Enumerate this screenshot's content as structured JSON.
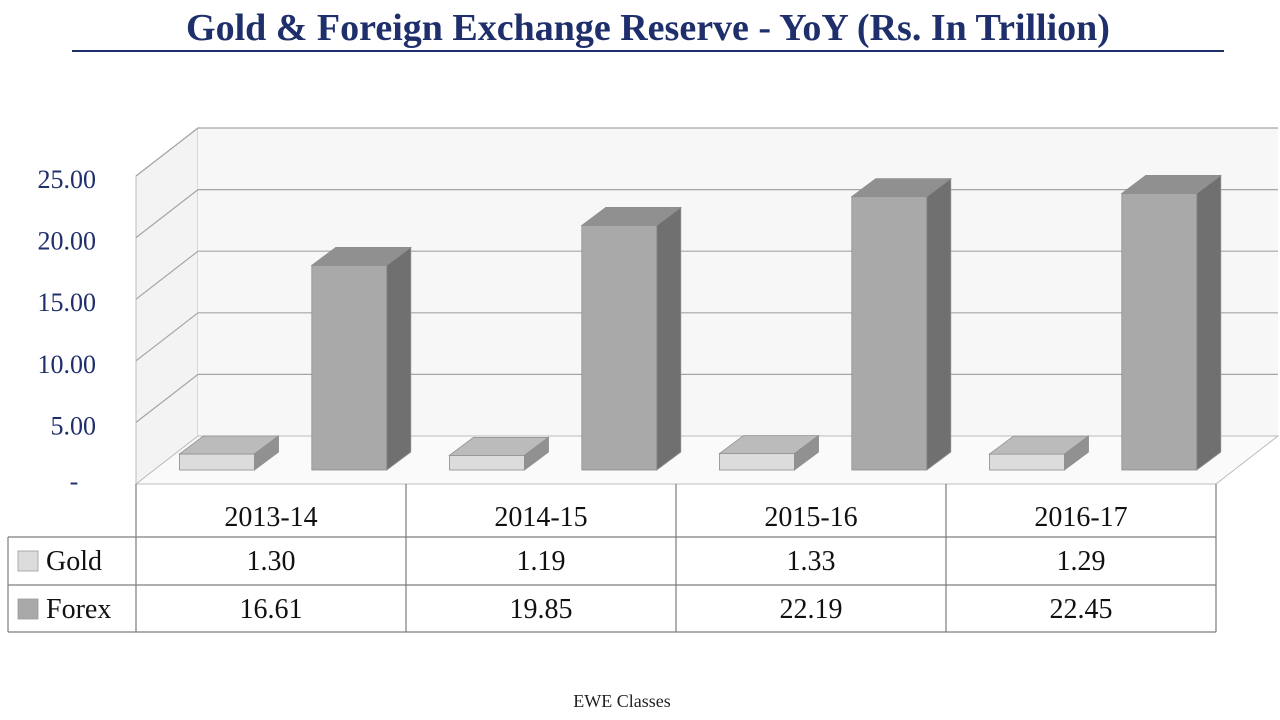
{
  "chart_data": {
    "type": "bar",
    "title": "Gold & Foreign Exchange Reserve - YoY (Rs. In Trillion)",
    "categories": [
      "2013-14",
      "2014-15",
      "2015-16",
      "2016-17"
    ],
    "series": [
      {
        "name": "Gold",
        "values": [
          1.3,
          1.19,
          1.33,
          1.29
        ],
        "labels": [
          "1.30",
          "1.19",
          "1.33",
          "1.29"
        ],
        "color": "#dcdcdc"
      },
      {
        "name": "Forex",
        "values": [
          16.61,
          19.85,
          22.19,
          22.45
        ],
        "labels": [
          "16.61",
          "19.85",
          "22.19",
          "22.45"
        ],
        "color": "#a9a9a9"
      }
    ],
    "yticks": [
      {
        "value": 0,
        "label": "-"
      },
      {
        "value": 5,
        "label": "5.00"
      },
      {
        "value": 10,
        "label": "10.00"
      },
      {
        "value": 15,
        "label": "15.00"
      },
      {
        "value": 20,
        "label": "20.00"
      },
      {
        "value": 25,
        "label": "25.00"
      }
    ],
    "ylim": [
      0,
      25
    ],
    "grid": true,
    "data_table": true,
    "three_d": true,
    "xlabel": "",
    "ylabel": ""
  },
  "footer": {
    "credit": "EWE Classes"
  }
}
